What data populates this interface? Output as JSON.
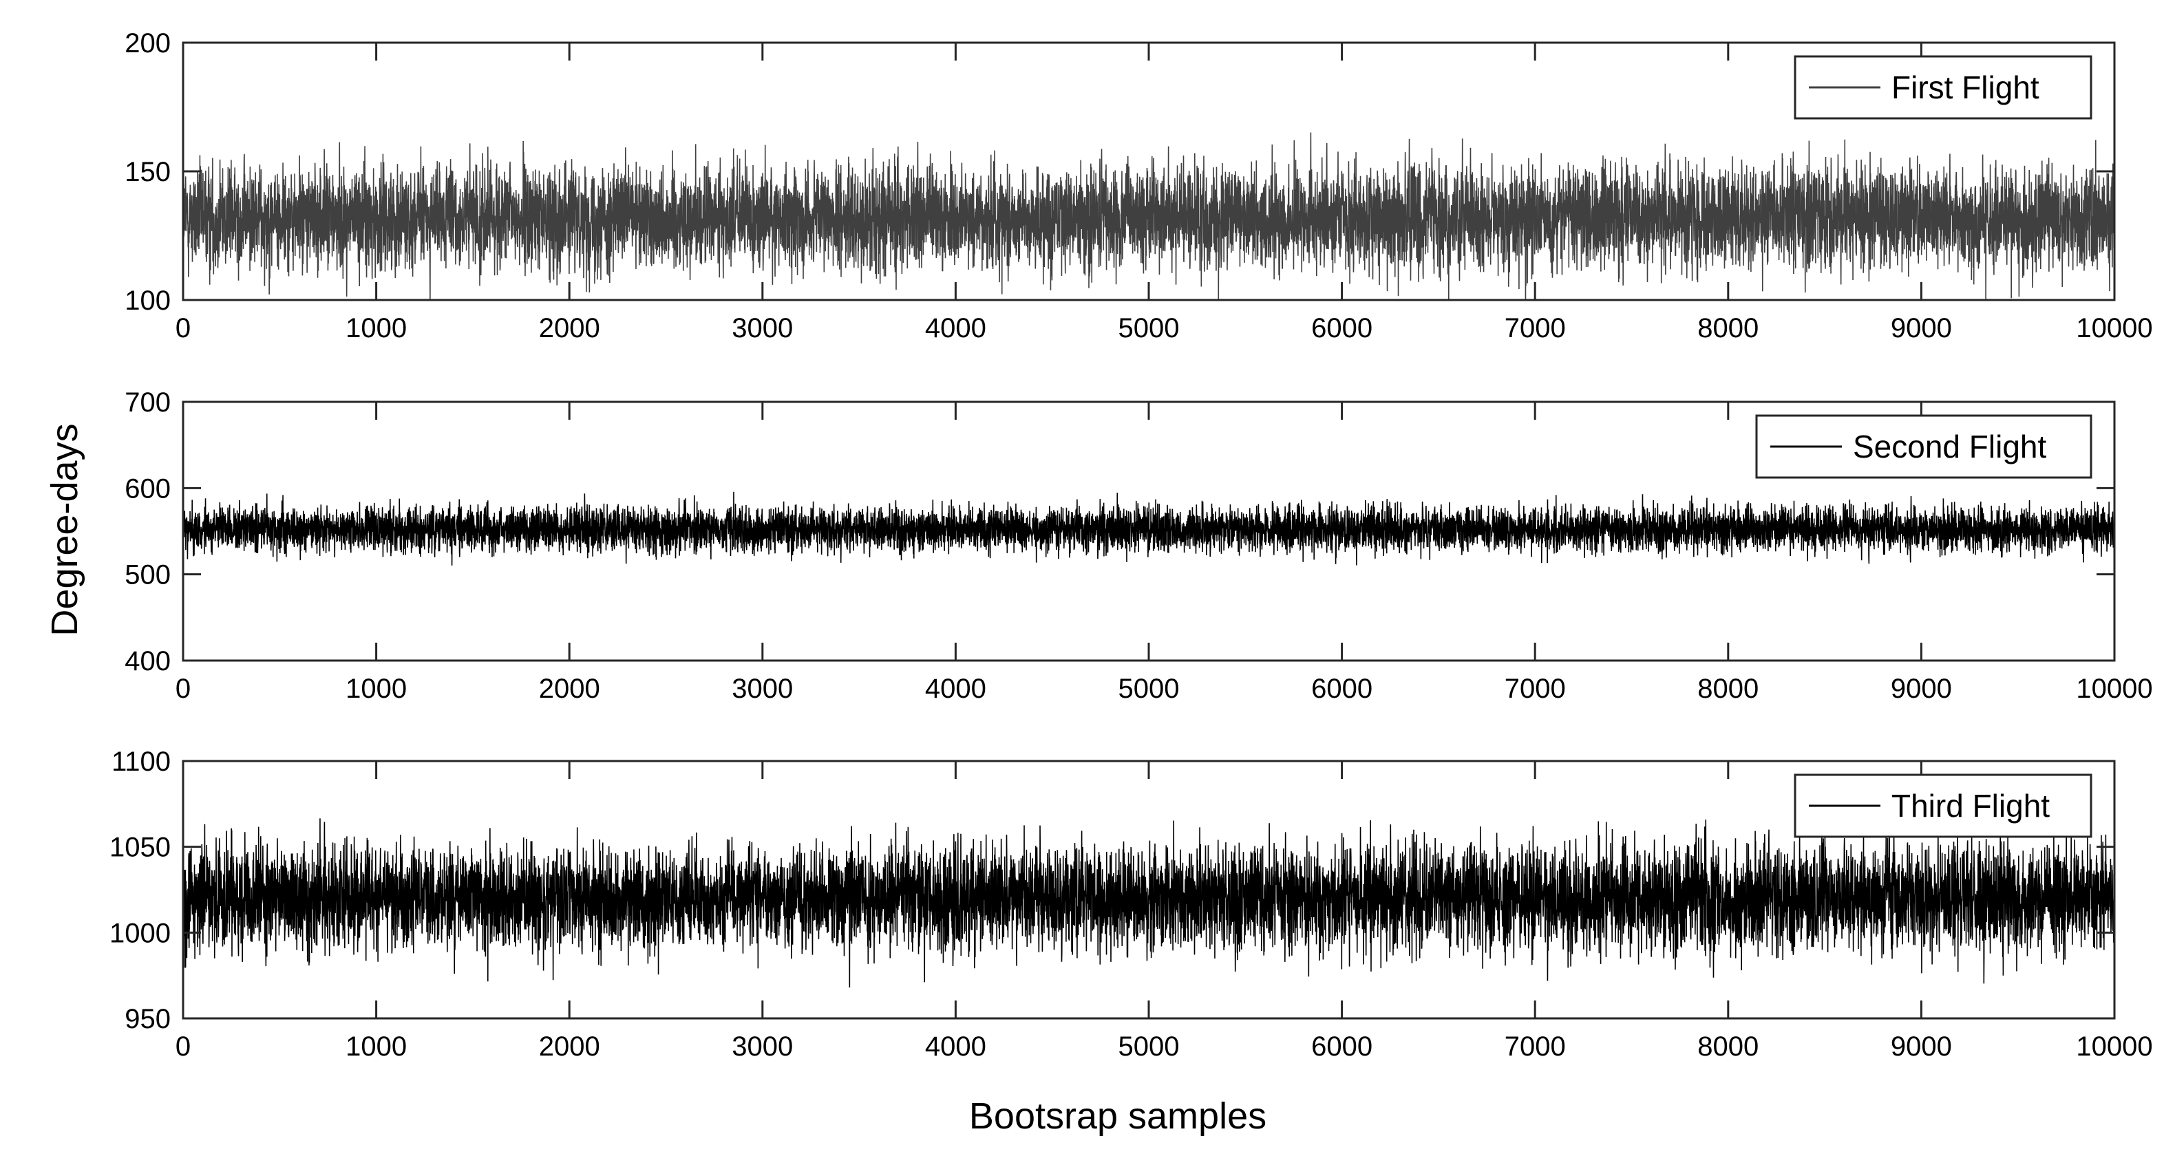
{
  "figure": {
    "ylabel": "Degree-days",
    "xlabel": "Bootsrap samples"
  },
  "chart_data": [
    {
      "type": "line",
      "series": [
        {
          "name": "First Flight",
          "color": "#404040",
          "mean": 132,
          "spread": 10,
          "min": 100,
          "max": 172
        }
      ],
      "x": {
        "start": 0,
        "end": 10000,
        "step": 1
      },
      "xlim": [
        0,
        10000
      ],
      "ylim": [
        100,
        200
      ],
      "xticks": [
        "0",
        "1000",
        "2000",
        "3000",
        "4000",
        "5000",
        "6000",
        "7000",
        "8000",
        "9000",
        "10000"
      ],
      "yticks": [
        "100",
        "150",
        "200"
      ],
      "legend_position": "top-right",
      "grid": false
    },
    {
      "type": "line",
      "series": [
        {
          "name": "Second Flight",
          "color": "#000000",
          "mean": 552,
          "spread": 13,
          "min": 487,
          "max": 605
        }
      ],
      "x": {
        "start": 0,
        "end": 10000,
        "step": 1
      },
      "xlim": [
        0,
        10000
      ],
      "ylim": [
        400,
        700
      ],
      "xticks": [
        "0",
        "1000",
        "2000",
        "3000",
        "4000",
        "5000",
        "6000",
        "7000",
        "8000",
        "9000",
        "10000"
      ],
      "yticks": [
        "400",
        "500",
        "600",
        "700"
      ],
      "legend_position": "top-right",
      "grid": false
    },
    {
      "type": "line",
      "series": [
        {
          "name": "Third Flight",
          "color": "#000000",
          "mean": 1020,
          "spread": 15,
          "min": 968,
          "max": 1082
        }
      ],
      "x": {
        "start": 0,
        "end": 10000,
        "step": 1
      },
      "xlim": [
        0,
        10000
      ],
      "ylim": [
        950,
        1100
      ],
      "xticks": [
        "0",
        "1000",
        "2000",
        "3000",
        "4000",
        "5000",
        "6000",
        "7000",
        "8000",
        "9000",
        "10000"
      ],
      "yticks": [
        "950",
        "1000",
        "1050",
        "1100"
      ],
      "legend_position": "top-right",
      "grid": false
    }
  ]
}
